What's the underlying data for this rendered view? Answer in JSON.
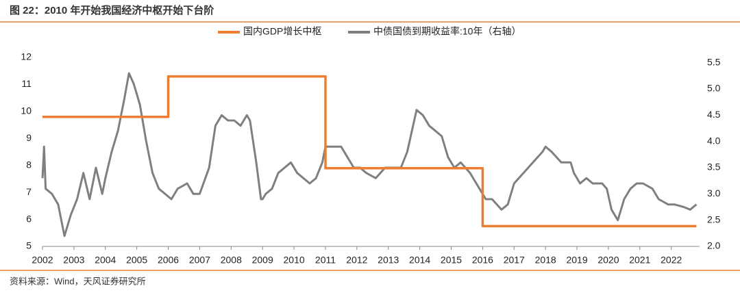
{
  "chart_data": {
    "type": "line",
    "title": "图 22：2010 年开始我国经济中枢开始下台阶",
    "source": "资料来源：Wind，天风证券研究所",
    "xlim": [
      2002,
      2022.9
    ],
    "xticks": [
      2002,
      2003,
      2004,
      2005,
      2006,
      2007,
      2008,
      2009,
      2010,
      2011,
      2012,
      2013,
      2014,
      2015,
      2016,
      2017,
      2018,
      2019,
      2020,
      2021,
      2022
    ],
    "ylim": [
      5,
      12
    ],
    "yticks": [
      5,
      6,
      7,
      8,
      9,
      10,
      11,
      12
    ],
    "y2lim": [
      2.0,
      5.6
    ],
    "y2ticks": [
      {
        "value": 2.0,
        "label": "2.0"
      },
      {
        "value": 2.5,
        "label": "2.5"
      },
      {
        "value": 3.0,
        "label": "3.0"
      },
      {
        "value": 3.5,
        "label": "3.5"
      },
      {
        "value": 4.0,
        "label": "4.0"
      },
      {
        "value": 4.5,
        "label": "4.5"
      },
      {
        "value": 5.0,
        "label": "5.0"
      },
      {
        "value": 5.5,
        "label": "5.5"
      }
    ],
    "series": [
      {
        "name": "国内GDP增长中枢",
        "color": "#ed7d31",
        "x": [
          2002,
          2006,
          2006,
          2011,
          2011,
          2016,
          2016,
          2022.8
        ],
        "values": [
          9.8,
          9.8,
          11.3,
          11.3,
          7.9,
          7.9,
          5.75,
          5.75
        ]
      },
      {
        "name": "中债国债到期收益率:10年（右轴）",
        "color": "#7f7f7f",
        "axis": "y2",
        "x": [
          2002.0,
          2002.05,
          2002.1,
          2002.3,
          2002.5,
          2002.7,
          2002.9,
          2003.1,
          2003.3,
          2003.5,
          2003.7,
          2003.9,
          2004.0,
          2004.2,
          2004.4,
          2004.6,
          2004.75,
          2004.9,
          2005.0,
          2005.1,
          2005.3,
          2005.5,
          2005.7,
          2005.9,
          2006.1,
          2006.3,
          2006.6,
          2006.8,
          2007.0,
          2007.3,
          2007.5,
          2007.7,
          2007.9,
          2008.1,
          2008.3,
          2008.5,
          2008.6,
          2008.8,
          2008.95,
          2009.0,
          2009.1,
          2009.3,
          2009.5,
          2009.7,
          2009.9,
          2010.1,
          2010.3,
          2010.5,
          2010.7,
          2010.9,
          2011.0,
          2011.2,
          2011.5,
          2011.7,
          2011.9,
          2012.1,
          2012.3,
          2012.6,
          2012.9,
          2013.2,
          2013.4,
          2013.6,
          2013.9,
          2014.1,
          2014.3,
          2014.5,
          2014.7,
          2014.9,
          2015.1,
          2015.3,
          2015.6,
          2015.9,
          2016.1,
          2016.3,
          2016.6,
          2016.8,
          2017.0,
          2017.3,
          2017.6,
          2017.9,
          2018.0,
          2018.2,
          2018.5,
          2018.8,
          2018.9,
          2019.1,
          2019.3,
          2019.5,
          2019.8,
          2019.95,
          2020.1,
          2020.3,
          2020.5,
          2020.7,
          2020.9,
          2021.1,
          2021.4,
          2021.6,
          2021.9,
          2022.1,
          2022.4,
          2022.6,
          2022.8
        ],
        "values": [
          3.3,
          3.9,
          3.1,
          3.0,
          2.8,
          2.2,
          2.6,
          2.9,
          3.4,
          2.9,
          3.5,
          3.0,
          3.3,
          3.8,
          4.2,
          4.8,
          5.3,
          5.1,
          4.9,
          4.7,
          4.0,
          3.4,
          3.1,
          3.0,
          2.9,
          3.1,
          3.2,
          3.0,
          3.0,
          3.5,
          4.3,
          4.5,
          4.4,
          4.4,
          4.3,
          4.5,
          4.4,
          3.6,
          2.9,
          2.9,
          3.0,
          3.1,
          3.4,
          3.5,
          3.6,
          3.4,
          3.3,
          3.2,
          3.3,
          3.6,
          3.9,
          3.9,
          3.9,
          3.7,
          3.5,
          3.5,
          3.4,
          3.3,
          3.5,
          3.5,
          3.5,
          3.8,
          4.6,
          4.5,
          4.3,
          4.2,
          4.1,
          3.7,
          3.5,
          3.6,
          3.4,
          3.1,
          2.9,
          2.9,
          2.7,
          2.8,
          3.2,
          3.4,
          3.6,
          3.8,
          3.9,
          3.8,
          3.6,
          3.6,
          3.4,
          3.2,
          3.3,
          3.2,
          3.2,
          3.1,
          2.7,
          2.5,
          2.9,
          3.1,
          3.2,
          3.2,
          3.1,
          2.9,
          2.8,
          2.8,
          2.75,
          2.7,
          2.8
        ]
      }
    ]
  }
}
